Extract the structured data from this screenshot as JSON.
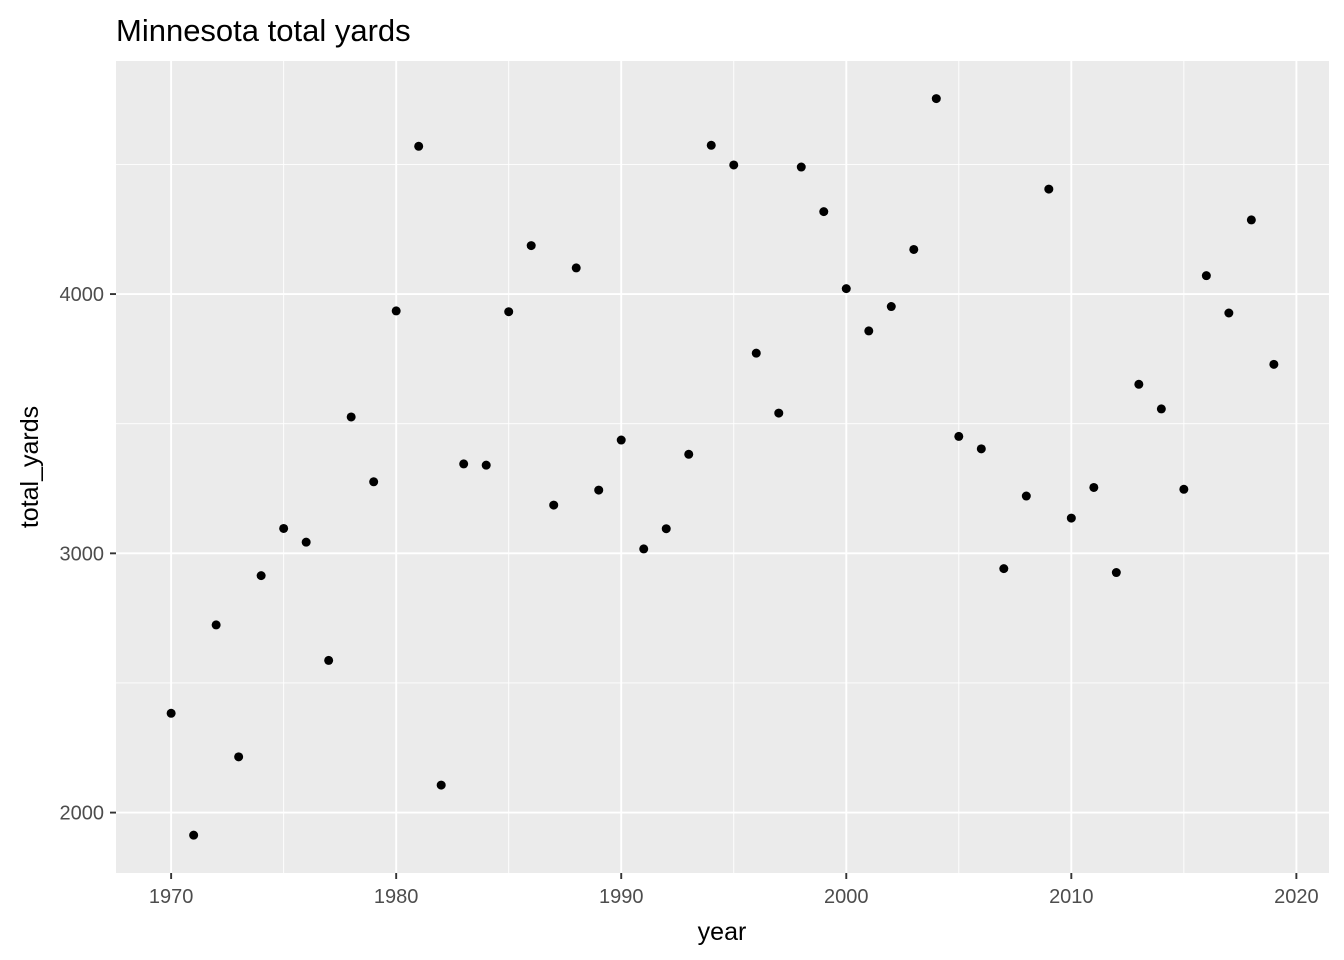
{
  "chart_data": {
    "type": "scatter",
    "title": "Minnesota total yards",
    "xlabel": "year",
    "ylabel": "total_yards",
    "xlim": [
      1967.55,
      2021.45
    ],
    "ylim": [
      1767,
      4899
    ],
    "x_ticks": [
      1970,
      1980,
      1990,
      2000,
      2010,
      2020
    ],
    "x_tick_labels": [
      "1970",
      "1980",
      "1990",
      "2000",
      "2010",
      "2020"
    ],
    "y_ticks": [
      2000,
      3000,
      4000
    ],
    "y_tick_labels": [
      "2000",
      "3000",
      "4000"
    ],
    "grid": true,
    "panel_background": "#ebebeb",
    "grid_color": "#ffffff",
    "point_color": "#000000",
    "x": [
      1970,
      1971,
      1972,
      1973,
      1974,
      1975,
      1976,
      1977,
      1978,
      1979,
      1980,
      1981,
      1982,
      1983,
      1984,
      1985,
      1986,
      1987,
      1988,
      1989,
      1990,
      1991,
      1992,
      1993,
      1994,
      1995,
      1996,
      1997,
      1998,
      1999,
      2000,
      2001,
      2002,
      2003,
      2004,
      2005,
      2006,
      2007,
      2008,
      2009,
      2010,
      2011,
      2012,
      2013,
      2014,
      2015,
      2016,
      2017,
      2018,
      2019
    ],
    "y": [
      2383,
      1913,
      2724,
      2215,
      2914,
      3096,
      3043,
      2587,
      3526,
      3276,
      3935,
      4570,
      2106,
      3345,
      3340,
      3932,
      4187,
      3186,
      4101,
      3244,
      3437,
      3017,
      3095,
      3382,
      4574,
      4498,
      3772,
      3541,
      4490,
      4318,
      4021,
      3858,
      3952,
      4172,
      4754,
      3451,
      3403,
      2941,
      3221,
      4405,
      3136,
      3254,
      2926,
      3652,
      3557,
      3247,
      4071,
      3927,
      4286,
      3729
    ]
  }
}
